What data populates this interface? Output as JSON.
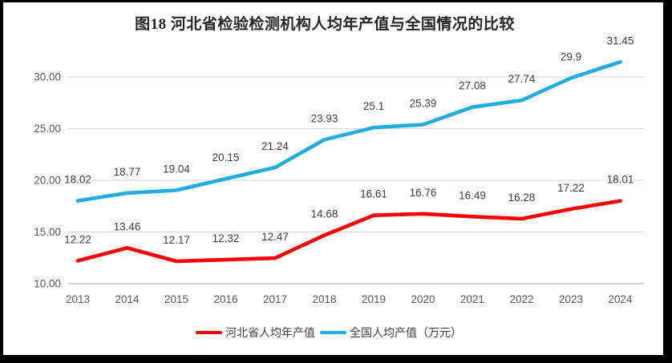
{
  "frame": {
    "border_color": "#000000",
    "background": "#FFFFFF"
  },
  "chart_data": {
    "type": "line",
    "title": "图18 河北省检验检测机构人均年产值与全国情况的比较",
    "categories": [
      "2013",
      "2014",
      "2015",
      "2016",
      "2017",
      "2018",
      "2019",
      "2020",
      "2021",
      "2022",
      "2023",
      "2024"
    ],
    "series": [
      {
        "key": "hebei",
        "name": "河北省人均年产值",
        "color": "#FE0000",
        "values": [
          12.22,
          13.46,
          12.17,
          12.32,
          12.47,
          14.68,
          16.61,
          16.76,
          16.49,
          16.28,
          17.22,
          18.01
        ]
      },
      {
        "key": "national",
        "name": "全国人均产值（万元）",
        "color": "#22ACE2",
        "values": [
          18.02,
          18.77,
          19.04,
          20.15,
          21.24,
          23.93,
          25.1,
          25.39,
          27.08,
          27.74,
          29.9,
          31.45
        ]
      }
    ],
    "yticks": [
      "10.00",
      "15.00",
      "20.00",
      "25.00",
      "30.00"
    ],
    "ylim": [
      10,
      32.5
    ],
    "xlabel": "",
    "ylabel": "",
    "grid": true,
    "data_labels": true,
    "legend_position": "bottom"
  },
  "colors": {
    "gridline": "#D9D9D9",
    "axis_line": "#BFBFBF",
    "tick_label": "#595959",
    "data_label": "#3F3F3F",
    "title": "#262626"
  }
}
